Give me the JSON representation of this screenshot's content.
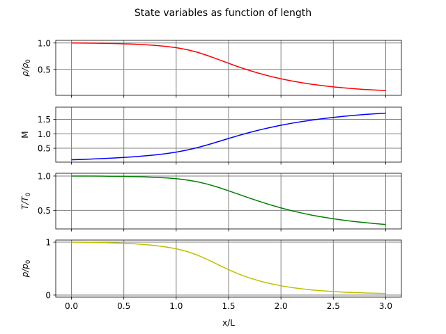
{
  "chart_data": {
    "type": "line",
    "title": "State variables as function of length",
    "xlabel": "x/L",
    "xlim": [
      -0.15,
      3.15
    ],
    "xticks": [
      0.0,
      0.5,
      1.0,
      1.5,
      2.0,
      2.5,
      3.0
    ],
    "xtick_labels": [
      "0.0",
      "0.5",
      "1.0",
      "1.5",
      "2.0",
      "2.5",
      "3.0"
    ],
    "grid": true,
    "x": [
      0.0,
      0.1,
      0.2,
      0.3,
      0.4,
      0.5,
      0.6,
      0.7,
      0.8,
      0.9,
      1.0,
      1.1,
      1.2,
      1.3,
      1.4,
      1.5,
      1.6,
      1.7,
      1.8,
      1.9,
      2.0,
      2.1,
      2.2,
      2.3,
      2.4,
      2.5,
      2.6,
      2.7,
      2.8,
      2.9,
      3.0
    ],
    "panels": [
      {
        "ylabel_main": "ρ/ρ",
        "ylabel_sub": "0",
        "color": "#ff0000",
        "ylim": [
          0.01,
          1.05
        ],
        "yticks": [
          0.5,
          1.0
        ],
        "ytick_labels": [
          "0.5",
          "1.0"
        ],
        "values": [
          1.0,
          0.999,
          0.997,
          0.994,
          0.99,
          0.985,
          0.978,
          0.968,
          0.955,
          0.937,
          0.912,
          0.876,
          0.826,
          0.762,
          0.69,
          0.616,
          0.545,
          0.48,
          0.421,
          0.369,
          0.323,
          0.283,
          0.248,
          0.218,
          0.192,
          0.17,
          0.151,
          0.135,
          0.121,
          0.11,
          0.1
        ]
      },
      {
        "ylabel_main": "M",
        "ylabel_sub": "",
        "color": "#0000ff",
        "ylim": [
          0.02,
          1.92
        ],
        "yticks": [
          0.5,
          1.0,
          1.5
        ],
        "ytick_labels": [
          "0.5",
          "1.0",
          "1.5"
        ],
        "values": [
          0.1,
          0.113,
          0.128,
          0.144,
          0.162,
          0.183,
          0.207,
          0.236,
          0.27,
          0.312,
          0.366,
          0.434,
          0.519,
          0.618,
          0.727,
          0.838,
          0.945,
          1.045,
          1.137,
          1.22,
          1.295,
          1.362,
          1.422,
          1.476,
          1.523,
          1.566,
          1.604,
          1.638,
          1.667,
          1.692,
          1.713
        ]
      },
      {
        "ylabel_main": "T/T",
        "ylabel_sub": "0",
        "color": "#008000",
        "ylim": [
          0.23,
          1.04
        ],
        "yticks": [
          0.5,
          1.0
        ],
        "ytick_labels": [
          "0.5",
          "1.0"
        ],
        "values": [
          1.0,
          1.0,
          0.999,
          0.998,
          0.996,
          0.994,
          0.991,
          0.987,
          0.981,
          0.973,
          0.961,
          0.943,
          0.917,
          0.881,
          0.836,
          0.785,
          0.732,
          0.679,
          0.628,
          0.58,
          0.536,
          0.496,
          0.461,
          0.429,
          0.402,
          0.378,
          0.357,
          0.338,
          0.322,
          0.307,
          0.294
        ]
      },
      {
        "ylabel_main": "p/p",
        "ylabel_sub": "0",
        "color": "#bfbf00",
        "ylim": [
          -0.04,
          1.04
        ],
        "yticks": [
          0,
          1
        ],
        "ytick_labels": [
          "0",
          "1"
        ],
        "values": [
          1.0,
          0.999,
          0.996,
          0.992,
          0.986,
          0.979,
          0.969,
          0.955,
          0.936,
          0.91,
          0.875,
          0.826,
          0.757,
          0.671,
          0.575,
          0.48,
          0.395,
          0.323,
          0.264,
          0.215,
          0.175,
          0.142,
          0.116,
          0.095,
          0.078,
          0.065,
          0.054,
          0.046,
          0.039,
          0.034,
          0.029
        ]
      }
    ]
  }
}
